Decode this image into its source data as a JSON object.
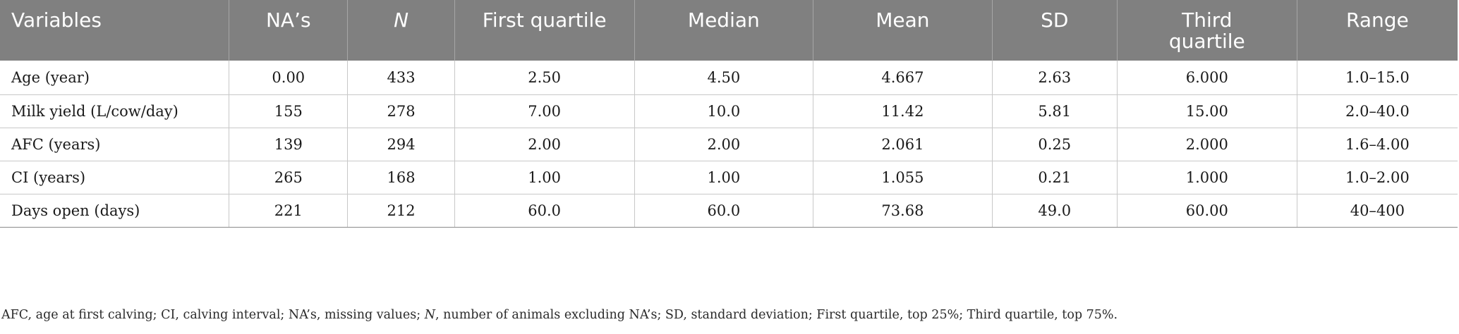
{
  "table": {
    "headers": [
      "Variables",
      "NA’s",
      "N",
      "First quartile",
      "Median",
      "Mean",
      "SD",
      "Third quartile",
      "Range"
    ],
    "rows": [
      [
        "Age (year)",
        "0.00",
        "433",
        "2.50",
        "4.50",
        "4.667",
        "2.63",
        "6.000",
        "1.0–15.0"
      ],
      [
        "Milk yield (L/cow/day)",
        "155",
        "278",
        "7.00",
        "10.0",
        "11.42",
        "5.81",
        "15.00",
        "2.0–40.0"
      ],
      [
        "AFC (years)",
        "139",
        "294",
        "2.00",
        "2.00",
        "2.061",
        "0.25",
        "2.000",
        "1.6–4.00"
      ],
      [
        "CI (years)",
        "265",
        "168",
        "1.00",
        "1.00",
        "1.055",
        "0.21",
        "1.000",
        "1.0–2.00"
      ],
      [
        "Days open (days)",
        "221",
        "212",
        "60.0",
        "60.0",
        "73.68",
        "49.0",
        "60.00",
        "40–400"
      ]
    ]
  },
  "footnote": {
    "part1": "AFC, age at first calving; CI, calving interval; NA’s, missing values; ",
    "n_symbol": "N",
    "part2": ", number of animals excluding NA’s; SD, standard deviation; First quartile, top 25%; Third quartile, top 75%."
  }
}
